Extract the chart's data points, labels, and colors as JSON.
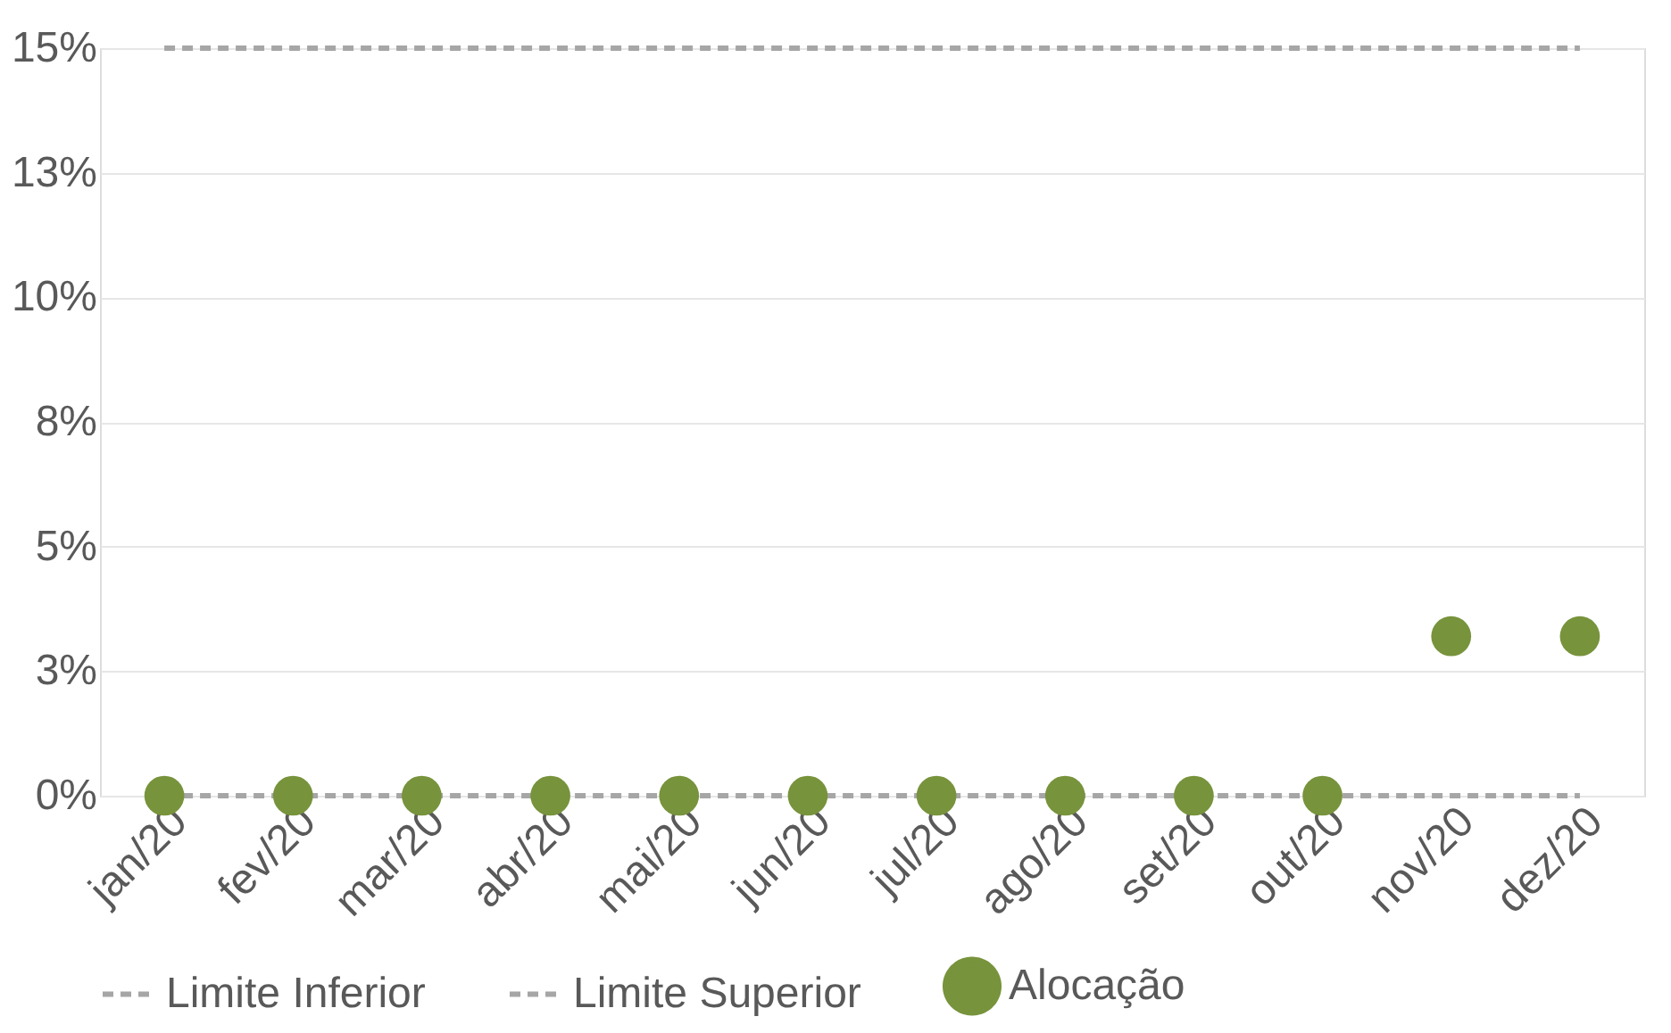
{
  "chart_data": {
    "type": "line",
    "categories": [
      "jan/20",
      "fev/20",
      "mar/20",
      "abr/20",
      "mai/20",
      "jun/20",
      "jul/20",
      "ago/20",
      "set/20",
      "out/20",
      "nov/20",
      "dez/20"
    ],
    "series": [
      {
        "name": "Limite Inferior",
        "line_style": "dashed",
        "marker": "none",
        "color": "#a6a6a6",
        "values": [
          0,
          0,
          0,
          0,
          0,
          0,
          0,
          0,
          0,
          0,
          0,
          0
        ]
      },
      {
        "name": "Limite Superior",
        "line_style": "dashed",
        "marker": "none",
        "color": "#a6a6a6",
        "values": [
          15,
          15,
          15,
          15,
          15,
          15,
          15,
          15,
          15,
          15,
          15,
          15
        ]
      },
      {
        "name": "Alocação",
        "type": "scatter",
        "marker": "circle",
        "color": "#77933c",
        "values": [
          0,
          0,
          0,
          0,
          0,
          0,
          0,
          0,
          0,
          0,
          3.2,
          3.2
        ]
      }
    ],
    "ylim": [
      0,
      15
    ],
    "yticks": [
      {
        "value": 0,
        "label": "0%"
      },
      {
        "value": 2.5,
        "label": "3%"
      },
      {
        "value": 5,
        "label": "5%"
      },
      {
        "value": 7.5,
        "label": "8%"
      },
      {
        "value": 10,
        "label": "10%"
      },
      {
        "value": 12.5,
        "label": "13%"
      },
      {
        "value": 15,
        "label": "15%"
      }
    ],
    "grid": "y",
    "legend": "bottom"
  }
}
